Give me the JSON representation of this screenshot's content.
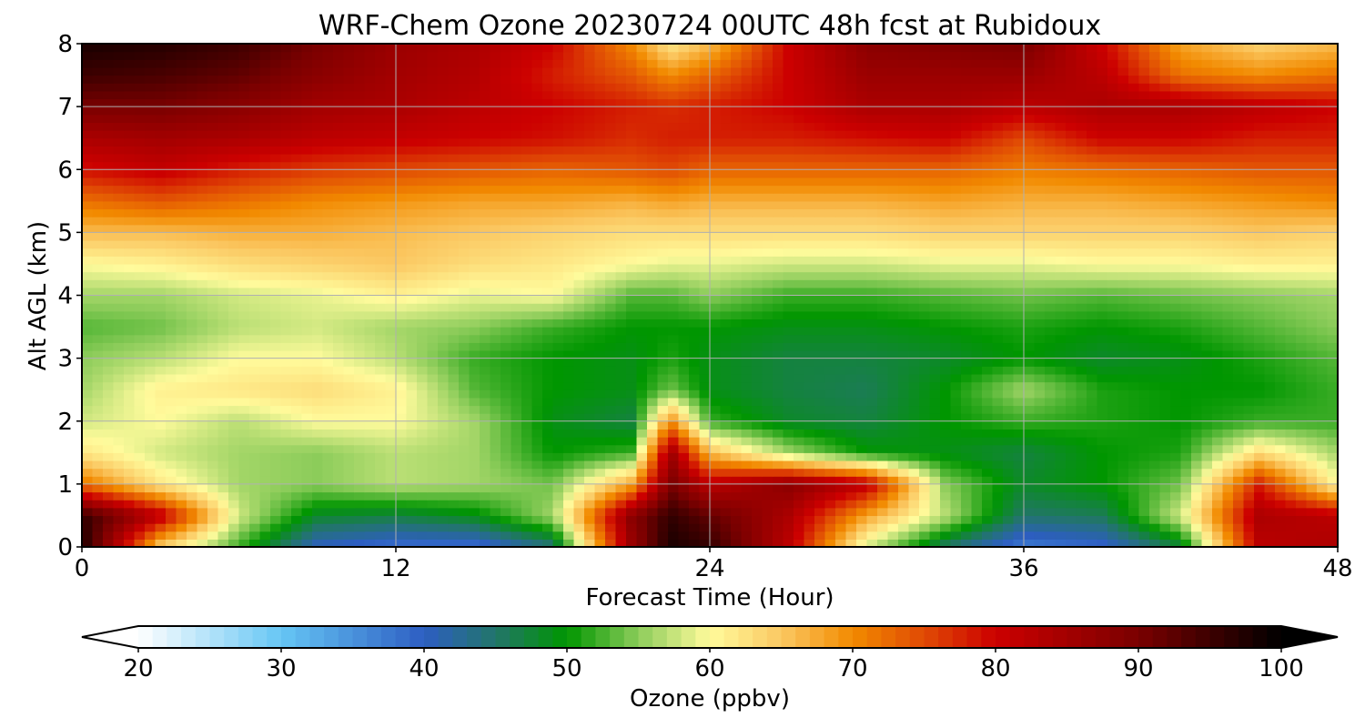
{
  "chart_data": {
    "type": "heatmap",
    "title": "WRF-Chem Ozone  20230724 00UTC 48h fcst at Rubidoux",
    "xlabel": "Forecast Time (Hour)",
    "ylabel": "Alt AGL (km)",
    "xlim": [
      0,
      48
    ],
    "ylim": [
      0,
      8
    ],
    "xticks": [
      0,
      12,
      24,
      36,
      48
    ],
    "yticks": [
      0,
      1,
      2,
      3,
      4,
      5,
      6,
      7,
      8
    ],
    "grid": true,
    "x": [
      0,
      3,
      6,
      9,
      12,
      15,
      18,
      21,
      22.5,
      24,
      27,
      30,
      33,
      36,
      39,
      42,
      45,
      48
    ],
    "y": [
      0,
      0.5,
      1,
      1.5,
      2,
      2.5,
      3,
      3.5,
      4,
      4.5,
      5,
      5.5,
      6,
      6.5,
      7,
      7.5,
      8
    ],
    "values": [
      [
        98,
        64,
        52,
        40,
        38,
        38,
        44,
        86,
        98,
        96,
        82,
        58,
        45,
        37,
        39,
        47,
        82,
        84
      ],
      [
        96,
        82,
        58,
        48,
        47,
        49,
        56,
        88,
        96,
        92,
        84,
        68,
        57,
        45,
        46,
        58,
        84,
        82
      ],
      [
        72,
        62,
        56,
        55,
        57,
        56,
        54,
        68,
        90,
        82,
        88,
        82,
        55,
        48,
        50,
        54,
        78,
        60
      ],
      [
        62,
        58,
        56,
        55,
        57,
        56,
        50,
        52,
        86,
        66,
        56,
        50,
        49,
        47,
        50,
        51,
        63,
        56
      ],
      [
        58,
        60,
        57,
        60,
        60,
        56,
        49,
        47,
        70,
        52,
        48,
        47,
        50,
        52,
        51,
        50,
        52,
        52
      ],
      [
        56,
        61,
        62,
        63,
        61,
        53,
        50,
        49,
        54,
        49,
        47,
        46,
        50,
        56,
        51,
        50,
        50,
        52
      ],
      [
        55,
        57,
        60,
        60,
        57,
        52,
        50,
        49,
        51,
        49,
        47,
        47,
        48,
        50,
        48,
        49,
        51,
        53
      ],
      [
        53,
        54,
        57,
        58,
        56,
        55,
        52,
        50,
        50,
        50,
        49,
        49,
        50,
        51,
        50,
        51,
        53,
        55
      ],
      [
        56,
        56,
        58,
        59,
        61,
        59,
        60,
        53,
        53,
        55,
        52,
        52,
        53,
        54,
        53,
        54,
        55,
        56
      ],
      [
        60,
        61,
        63,
        64,
        65,
        63,
        62,
        60,
        59,
        59,
        58,
        58,
        59,
        59,
        60,
        60,
        61,
        61
      ],
      [
        66,
        66,
        67,
        67,
        66,
        65,
        64,
        63,
        63,
        63,
        63,
        63,
        64,
        64,
        64,
        64,
        65,
        64
      ],
      [
        72,
        74,
        72,
        70,
        69,
        68,
        68,
        67,
        68,
        67,
        67,
        67,
        68,
        67,
        67,
        68,
        69,
        70
      ],
      [
        79,
        81,
        78,
        76,
        75,
        74,
        73,
        74,
        75,
        73,
        73,
        73,
        73,
        71,
        72,
        73,
        74,
        74
      ],
      [
        84,
        85,
        84,
        82,
        81,
        80,
        79,
        77,
        78,
        78,
        78,
        79,
        80,
        75,
        80,
        80,
        78,
        78
      ],
      [
        90,
        90,
        88,
        85,
        84,
        82,
        80,
        78,
        77,
        78,
        80,
        84,
        84,
        82,
        84,
        84,
        82,
        80
      ],
      [
        95,
        94,
        92,
        88,
        85,
        83,
        78,
        74,
        70,
        73,
        80,
        86,
        86,
        86,
        82,
        72,
        70,
        72
      ],
      [
        98,
        97,
        95,
        90,
        86,
        84,
        80,
        70,
        62,
        66,
        80,
        88,
        89,
        90,
        80,
        68,
        64,
        66
      ]
    ],
    "colorbar": {
      "label": "Ozone  (ppbv)",
      "ticks": [
        20,
        30,
        40,
        50,
        60,
        70,
        80,
        90,
        100
      ],
      "min": 20,
      "max": 100,
      "extend": "both",
      "colors": [
        {
          "v": 20,
          "c": "#ffffff"
        },
        {
          "v": 30,
          "c": "#66c6f4"
        },
        {
          "v": 40,
          "c": "#2d5ec2"
        },
        {
          "v": 45,
          "c": "#22756a"
        },
        {
          "v": 50,
          "c": "#009600"
        },
        {
          "v": 55,
          "c": "#8ccc5a"
        },
        {
          "v": 60,
          "c": "#fffb9c"
        },
        {
          "v": 65,
          "c": "#fbc862"
        },
        {
          "v": 70,
          "c": "#f28a00"
        },
        {
          "v": 75,
          "c": "#e04a04"
        },
        {
          "v": 80,
          "c": "#cc0000"
        },
        {
          "v": 90,
          "c": "#7a0000"
        },
        {
          "v": 100,
          "c": "#000000"
        }
      ]
    }
  }
}
